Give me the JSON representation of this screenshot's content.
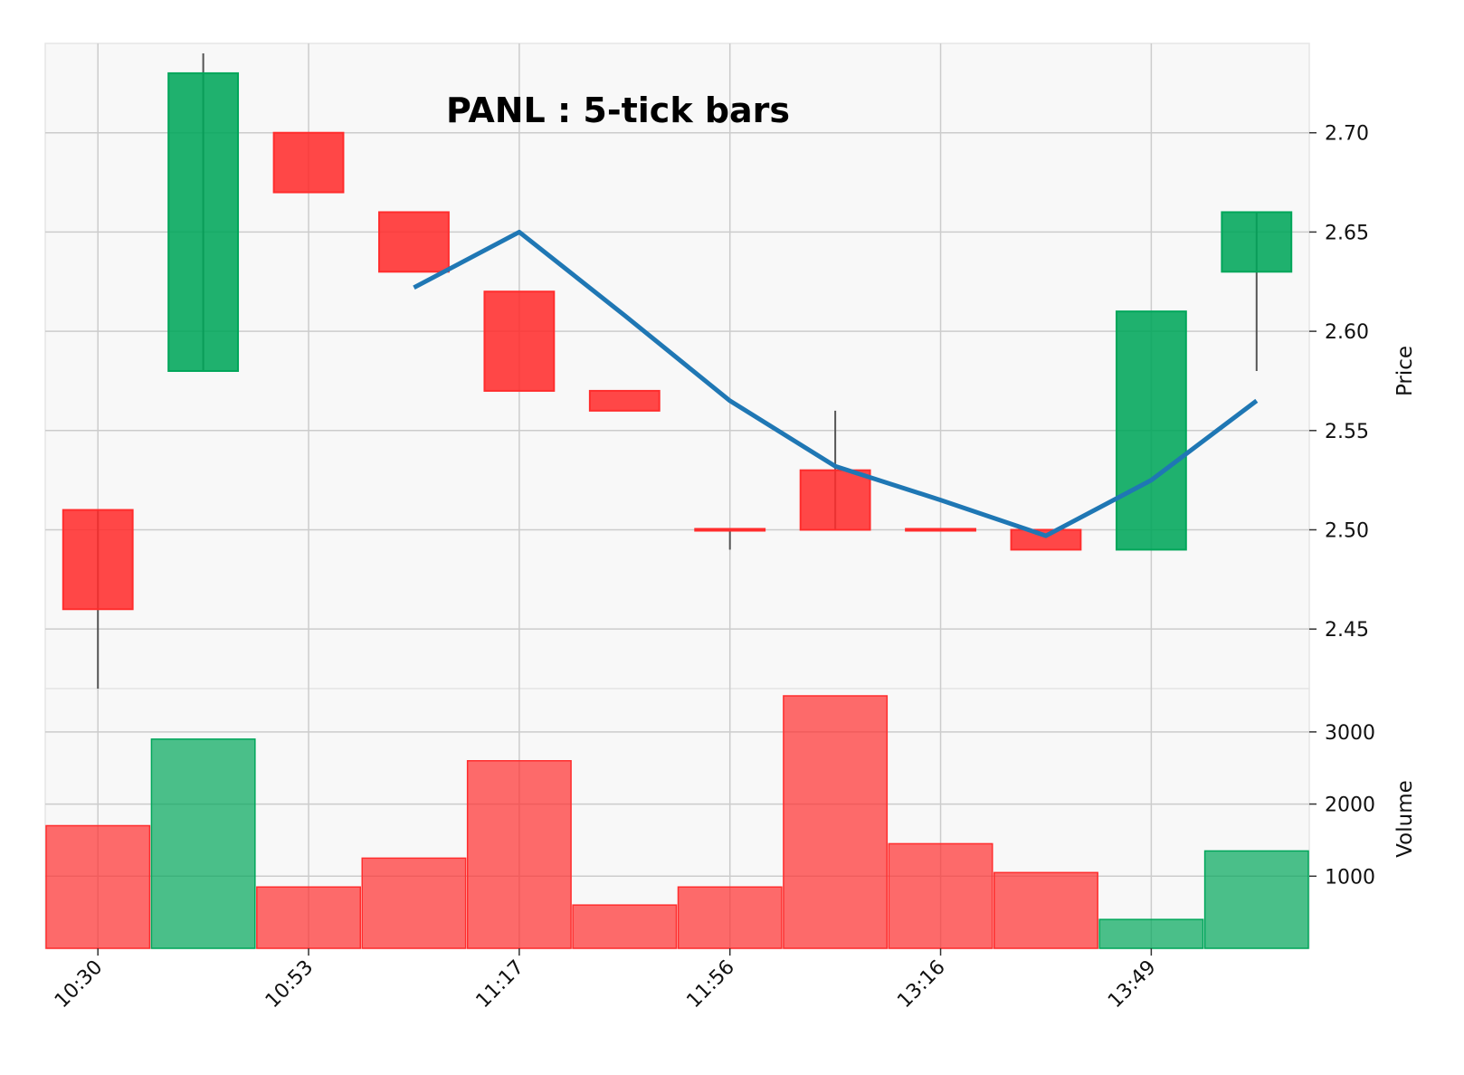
{
  "chart_data": {
    "type": "candlestick",
    "title": "PANL : 5-tick bars",
    "ylabel_price": "Price",
    "ylabel_volume": "Volume",
    "xtick_labels": [
      "10:30",
      "10:53",
      "11:17",
      "11:56",
      "13:16",
      "13:49"
    ],
    "xtick_positions": [
      0,
      2,
      4,
      6,
      8,
      10
    ],
    "price_ticks": [
      "2.45",
      "2.50",
      "2.55",
      "2.60",
      "2.65",
      "2.70"
    ],
    "volume_ticks": [
      "1000",
      "2000",
      "3000"
    ],
    "price_ylim": [
      2.42,
      2.745
    ],
    "volume_ylim": [
      0,
      3500
    ],
    "ohlc": [
      {
        "open": 2.51,
        "high": 2.51,
        "low": 2.42,
        "close": 2.46
      },
      {
        "open": 2.58,
        "high": 2.74,
        "low": 2.58,
        "close": 2.73
      },
      {
        "open": 2.7,
        "high": 2.7,
        "low": 2.67,
        "close": 2.67
      },
      {
        "open": 2.66,
        "high": 2.66,
        "low": 2.63,
        "close": 2.63
      },
      {
        "open": 2.62,
        "high": 2.62,
        "low": 2.57,
        "close": 2.57
      },
      {
        "open": 2.57,
        "high": 2.57,
        "low": 2.56,
        "close": 2.56
      },
      {
        "open": 2.5,
        "high": 2.5,
        "low": 2.49,
        "close": 2.5
      },
      {
        "open": 2.53,
        "high": 2.56,
        "low": 2.5,
        "close": 2.5
      },
      {
        "open": 2.5,
        "high": 2.5,
        "low": 2.5,
        "close": 2.5
      },
      {
        "open": 2.5,
        "high": 2.5,
        "low": 2.49,
        "close": 2.49
      },
      {
        "open": 2.49,
        "high": 2.61,
        "low": 2.49,
        "close": 2.61
      },
      {
        "open": 2.63,
        "high": 2.66,
        "low": 2.58,
        "close": 2.66
      }
    ],
    "volume": [
      1700,
      2900,
      850,
      1250,
      2600,
      600,
      850,
      3500,
      1450,
      1050,
      400,
      1350
    ],
    "moving_average": {
      "start_index": 3,
      "values": [
        2.622,
        2.65,
        2.608,
        2.565,
        2.532,
        2.515,
        2.497,
        2.525,
        2.565
      ]
    },
    "colors": {
      "up": "#00a65a",
      "down": "#ff2d2d",
      "ma_line": "#1f77b4",
      "panel_bg": "#f8f8f8",
      "grid": "#cccccc",
      "wick": "#555555"
    }
  }
}
